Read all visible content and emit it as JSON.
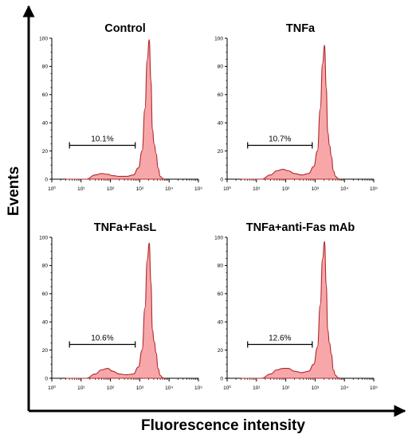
{
  "figure": {
    "xlabel": "Fluorescence intensity",
    "ylabel": "Events",
    "colors": {
      "fill": "#f7a7a9",
      "stroke": "#b0282c",
      "axis": "#000000"
    }
  },
  "chart_data": [
    {
      "type": "area",
      "title": "Control",
      "x_scale": "log",
      "xlim": [
        1,
        100000
      ],
      "ylim": [
        0,
        100
      ],
      "x_ticks": [
        "10⁰",
        "10¹",
        "10²",
        "10³",
        "10⁴",
        "10⁵"
      ],
      "y_ticks": [
        "0",
        "20",
        "40",
        "60",
        "80",
        "100"
      ],
      "gate": {
        "label": "10.1%",
        "x_range": [
          4,
          700
        ]
      },
      "series": [
        {
          "x": [
            3,
            15,
            30,
            50,
            80,
            120,
            200,
            350,
            600,
            900,
            1200,
            1500,
            1800,
            2100,
            2400,
            2700,
            3100,
            3600,
            4200,
            5000,
            6000,
            7000
          ],
          "y": [
            0,
            0,
            3,
            4,
            3.5,
            2.5,
            2,
            2,
            3,
            8,
            20,
            50,
            85,
            99,
            70,
            35,
            25,
            18,
            8,
            2,
            0.5,
            0
          ]
        }
      ]
    },
    {
      "type": "area",
      "title": "TNFa",
      "x_scale": "log",
      "xlim": [
        1,
        100000
      ],
      "ylim": [
        0,
        100
      ],
      "x_ticks": [
        "10⁰",
        "10¹",
        "10²",
        "10³",
        "10⁴",
        "10⁵"
      ],
      "y_ticks": [
        "0",
        "20",
        "40",
        "60",
        "80",
        "100"
      ],
      "gate": {
        "label": "10.7%",
        "x_range": [
          5,
          800
        ]
      },
      "series": [
        {
          "x": [
            3,
            15,
            30,
            50,
            80,
            120,
            200,
            350,
            600,
            900,
            1200,
            1500,
            1800,
            2100,
            2400,
            2700,
            3100,
            3600,
            4200,
            5000,
            6000,
            7000
          ],
          "y": [
            0,
            0,
            3,
            6,
            7,
            6,
            4,
            3,
            4,
            9,
            20,
            50,
            82,
            95,
            65,
            33,
            24,
            16,
            6,
            2,
            0.5,
            0
          ]
        }
      ]
    },
    {
      "type": "area",
      "title": "TNFa+FasL",
      "x_scale": "log",
      "xlim": [
        1,
        100000
      ],
      "ylim": [
        0,
        100
      ],
      "x_ticks": [
        "10⁰",
        "10¹",
        "10²",
        "10³",
        "10⁴",
        "10⁵"
      ],
      "y_ticks": [
        "0",
        "20",
        "40",
        "60",
        "80",
        "100"
      ],
      "gate": {
        "label": "10.6%",
        "x_range": [
          4,
          700
        ]
      },
      "series": [
        {
          "x": [
            3,
            15,
            30,
            50,
            80,
            120,
            200,
            350,
            600,
            900,
            1200,
            1500,
            1800,
            2100,
            2400,
            2700,
            3100,
            3600,
            4200,
            5000,
            6000,
            7000
          ],
          "y": [
            0,
            0,
            3,
            6,
            7,
            5,
            3,
            2.5,
            3,
            8,
            20,
            50,
            84,
            96,
            68,
            34,
            26,
            18,
            7,
            2,
            0.5,
            0
          ]
        }
      ]
    },
    {
      "type": "area",
      "title": "TNFa+anti-Fas mAb",
      "x_scale": "log",
      "xlim": [
        1,
        100000
      ],
      "ylim": [
        0,
        100
      ],
      "x_ticks": [
        "10⁰",
        "10¹",
        "10²",
        "10³",
        "10⁴",
        "10⁵"
      ],
      "y_ticks": [
        "0",
        "20",
        "40",
        "60",
        "80",
        "100"
      ],
      "gate": {
        "label": "12.6%",
        "x_range": [
          5,
          800
        ]
      },
      "series": [
        {
          "x": [
            3,
            15,
            30,
            50,
            80,
            120,
            200,
            350,
            600,
            900,
            1200,
            1500,
            1800,
            2100,
            2400,
            2700,
            3100,
            3600,
            4200,
            5000,
            6000,
            7000
          ],
          "y": [
            0,
            0,
            3,
            6,
            7,
            7,
            5,
            4,
            5,
            10,
            22,
            52,
            85,
            97,
            66,
            34,
            25,
            17,
            6,
            2,
            0.5,
            0
          ]
        }
      ]
    }
  ]
}
